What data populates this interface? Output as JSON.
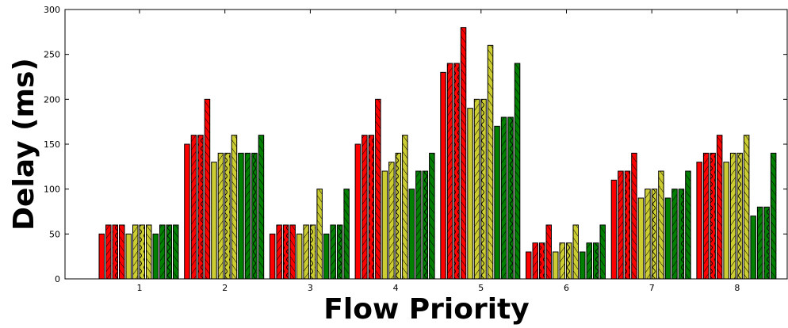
{
  "chart_data": {
    "type": "bar",
    "title": "",
    "xlabel": "Flow Priority",
    "ylabel": "Delay (ms)",
    "ylim": [
      0,
      300
    ],
    "yticks": [
      0,
      50,
      100,
      150,
      200,
      250,
      300
    ],
    "categories": [
      "1",
      "2",
      "3",
      "4",
      "5",
      "6",
      "7",
      "8"
    ],
    "grid": false,
    "legend": "none",
    "group_colors": [
      "#ff0000",
      "#ff0000",
      "#ff0000",
      "#ff0000",
      "#cccc33",
      "#cccc33",
      "#cccc33",
      "#cccc33",
      "#008000",
      "#008000",
      "#008000",
      "#008000"
    ],
    "series": [
      {
        "values": [
          50,
          150,
          50,
          150,
          230,
          30,
          110,
          130
        ]
      },
      {
        "values": [
          60,
          160,
          60,
          160,
          240,
          40,
          120,
          140
        ]
      },
      {
        "values": [
          60,
          160,
          60,
          160,
          240,
          40,
          120,
          140
        ]
      },
      {
        "values": [
          60,
          200,
          60,
          200,
          280,
          60,
          140,
          160
        ]
      },
      {
        "values": [
          50,
          130,
          50,
          120,
          190,
          30,
          90,
          130
        ]
      },
      {
        "values": [
          60,
          140,
          60,
          130,
          200,
          40,
          100,
          140
        ]
      },
      {
        "values": [
          60,
          140,
          60,
          140,
          200,
          40,
          100,
          140
        ]
      },
      {
        "values": [
          60,
          160,
          100,
          160,
          260,
          60,
          120,
          160
        ]
      },
      {
        "values": [
          50,
          140,
          50,
          100,
          170,
          30,
          90,
          70
        ]
      },
      {
        "values": [
          60,
          140,
          60,
          120,
          180,
          40,
          100,
          80
        ]
      },
      {
        "values": [
          60,
          140,
          60,
          120,
          180,
          40,
          100,
          80
        ]
      },
      {
        "values": [
          60,
          160,
          100,
          140,
          240,
          60,
          120,
          140
        ]
      }
    ]
  }
}
